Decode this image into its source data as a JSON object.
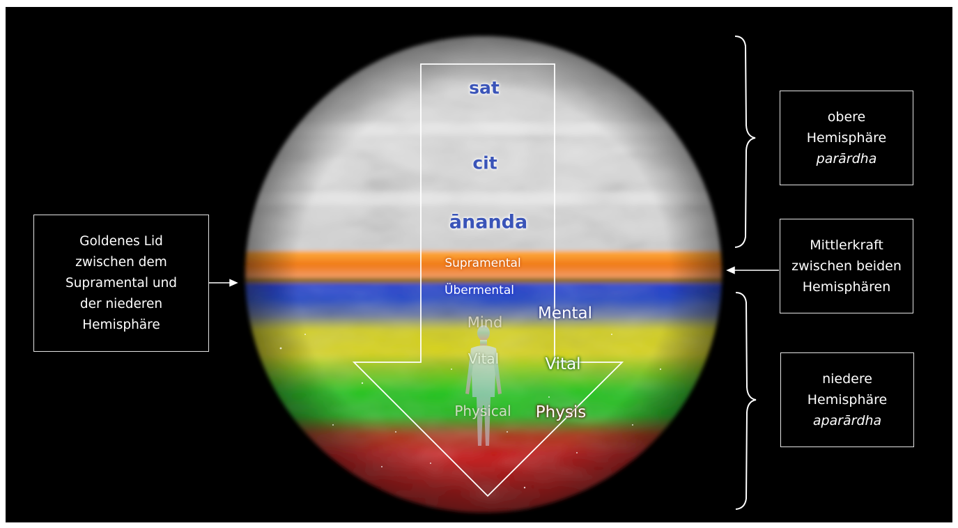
{
  "planes": {
    "sat": "sat",
    "cit": "cit",
    "ananda": "ānanda",
    "supramental": "Supramental",
    "ubermental": "Übermental"
  },
  "inner_levels": {
    "mind": "Mind",
    "vital": "Vital",
    "physical": "Physical"
  },
  "outer_levels": {
    "mental": "Mental",
    "vital": "Vital",
    "physis": "Physis"
  },
  "boxes": {
    "left": {
      "lines": [
        "Goldenes Lid",
        "zwischen dem",
        "Supramental und",
        "der niederen",
        "Hemisphäre"
      ]
    },
    "upper": {
      "line1": "obere",
      "line2": "Hemisphäre",
      "line3": "parārdha"
    },
    "middle": {
      "lines": [
        "Mittlerkraft",
        "zwischen beiden",
        "Hemisphären"
      ]
    },
    "lower": {
      "line1": "niedere",
      "line2": "Hemisphäre",
      "line3": "aparārdha"
    }
  },
  "colors": {
    "background": "#000000",
    "upper_sphere": "#d8d8d8",
    "supramental_band": "#f08a20",
    "golden_lid": "#8a6a20",
    "ubermental_band": "#1f3ad0",
    "mental_band": "#d6d21a",
    "vital_band": "#22c41c",
    "physical_band": "#c41616",
    "plane_text": "#3a54b8",
    "lines": "#ffffff"
  }
}
